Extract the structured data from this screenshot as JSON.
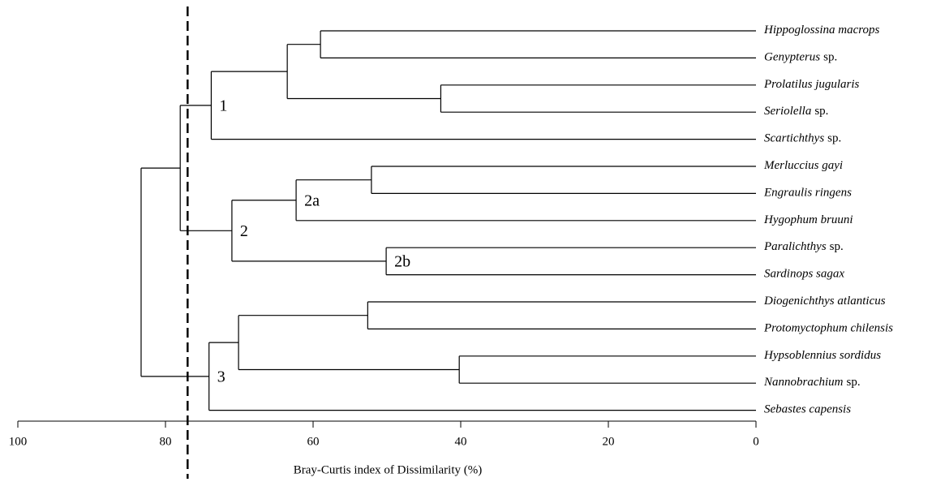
{
  "chart_data": {
    "type": "dendrogram",
    "xlabel": "Bray-Curtis index of Dissimilarity (%)",
    "xlim": [
      100,
      0
    ],
    "xticks": [
      100,
      80,
      60,
      40,
      20,
      0
    ],
    "cutoff": 77,
    "color": "#000000",
    "tree": {
      "height": 83.3,
      "children": [
        {
          "height": 78.0,
          "children": [
            {
              "height": 73.8,
              "label": "1",
              "children": [
                {
                  "height": 63.5,
                  "children": [
                    {
                      "height": 59.0,
                      "children": [
                        {
                          "name": "Hippoglossina macrops"
                        },
                        {
                          "name": "Genypterus",
                          "suffix": "sp."
                        }
                      ]
                    },
                    {
                      "height": 42.7,
                      "children": [
                        {
                          "name": "Prolatilus jugularis"
                        },
                        {
                          "name": "Seriolella",
                          "suffix": "sp."
                        }
                      ]
                    }
                  ]
                },
                {
                  "name": "Scartichthys",
                  "suffix": "sp."
                }
              ]
            },
            {
              "height": 71.0,
              "label": "2",
              "children": [
                {
                  "height": 62.3,
                  "label": "2a",
                  "children": [
                    {
                      "height": 52.1,
                      "children": [
                        {
                          "name": "Merluccius gayi"
                        },
                        {
                          "name": "Engraulis ringens"
                        }
                      ]
                    },
                    {
                      "name": "Hygophum bruuni"
                    }
                  ]
                },
                {
                  "height": 50.1,
                  "label": "2b",
                  "children": [
                    {
                      "name": "Paralichthys",
                      "suffix": "sp."
                    },
                    {
                      "name": "Sardinops sagax"
                    }
                  ]
                }
              ]
            }
          ]
        },
        {
          "height": 74.1,
          "label": "3",
          "children": [
            {
              "height": 70.1,
              "children": [
                {
                  "height": 52.6,
                  "children": [
                    {
                      "name": "Diogenichthys atlanticus"
                    },
                    {
                      "name": "Protomyctophum chilensis"
                    }
                  ]
                },
                {
                  "height": 40.2,
                  "children": [
                    {
                      "name": "Hypsoblennius sordidus"
                    },
                    {
                      "name": "Nannobrachium",
                      "suffix": "sp."
                    }
                  ]
                }
              ]
            },
            {
              "name": "Sebastes capensis"
            }
          ]
        }
      ]
    }
  }
}
